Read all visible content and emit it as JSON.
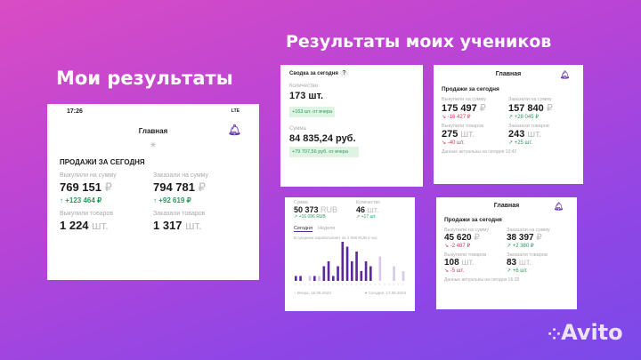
{
  "headings": {
    "mine": "Мои результаты",
    "students": "Результаты моих учеников"
  },
  "main_card": {
    "time": "17:26",
    "network": "LTE",
    "title": "Главная",
    "section": "ПРОДАЖИ ЗА СЕГОДНЯ",
    "bought_sum_label": "Выкупили на сумму",
    "bought_sum": "769 151",
    "bought_delta": "+123 464 ₽",
    "ordered_sum_label": "Заказали на сумму",
    "ordered_sum": "794 781",
    "ordered_delta": "+92 619 ₽",
    "bought_qty_label": "Выкупили товаров",
    "bought_qty": "1 224",
    "ordered_qty_label": "Заказали товаров",
    "ordered_qty": "1 317",
    "currency": "₽",
    "pcs": "шт."
  },
  "card_a": {
    "title": "Сводка за сегодня",
    "help": "?",
    "qty_label": "Количество",
    "qty": "173 шт.",
    "qty_delta": "+163 шт. от вчера",
    "sum_label": "Сумма",
    "sum": "84 835,24 руб.",
    "sum_delta": "+79 707,56 руб. от вчера"
  },
  "card_b": {
    "title": "Главная",
    "section": "Продажи за сегодня",
    "bought_sum_label": "Выкупили на сумму",
    "bought_sum": "175 497",
    "bought_delta": "-16 427 ₽",
    "ordered_sum_label": "Заказали на сумму",
    "ordered_sum": "157 840",
    "ordered_delta": "+28 045 ₽",
    "bought_qty_label": "Выкупили товаров",
    "bought_qty": "275",
    "bought_qty_delta": "-40 шт.",
    "ordered_qty_label": "Заказали товаров",
    "ordered_qty": "243",
    "ordered_qty_delta": "+25 шт.",
    "footer": "Данные актуальны на сегодня 10:42"
  },
  "card_c": {
    "sum_label": "Сумма",
    "sum": "50 373",
    "sum_unit": "RUB",
    "sum_delta": "+16 096 RUB",
    "qty_label": "Количество",
    "qty": "46",
    "qty_unit": "шт.",
    "qty_delta": "+17 шт.",
    "tabs": [
      "Сегодня",
      "Неделя"
    ],
    "avg": "В среднем зарабатывает на 2 098 RUB в час",
    "legend_yesterday": "Вчера, 16.09.2023",
    "legend_today": "Сегодня, 17.09.2023"
  },
  "card_d": {
    "title": "Главная",
    "section": "Продажи за сегодня",
    "bought_sum_label": "Выкупили на сумму",
    "bought_sum": "45 620",
    "bought_delta": "-2 487 ₽",
    "ordered_sum_label": "Заказали на сумму",
    "ordered_sum": "38 397",
    "ordered_delta": "+2 380 ₽",
    "bought_qty_label": "Выкупили товаров",
    "bought_qty": "108",
    "bought_qty_delta": "-5 шт.",
    "ordered_qty_label": "Заказали товаров",
    "ordered_qty": "83",
    "ordered_qty_delta": "+6 шт.",
    "footer": "Данные актуальны на сегодня 16:28"
  },
  "logo": "Avito",
  "chart_data": {
    "type": "bar",
    "series": [
      {
        "name": "Сегодня, 17.09.2023",
        "values": [
          1,
          1,
          0,
          0,
          1,
          0,
          3,
          4,
          1,
          3,
          8,
          7,
          4,
          6,
          2,
          4,
          3,
          0,
          0,
          0,
          0,
          0,
          0,
          0
        ]
      },
      {
        "name": "Вчера, 16.09.2023",
        "values": [
          0,
          0,
          0,
          1,
          0,
          1,
          0,
          0,
          0,
          0,
          0,
          0,
          0,
          0,
          0,
          0,
          0,
          0,
          5,
          0,
          0,
          3,
          0,
          2
        ]
      }
    ]
  },
  "colors": {
    "today": "#5a2a9a",
    "yesterday": "#d8c8ef",
    "up": "#2a9a5a",
    "down": "#d03a5a"
  }
}
